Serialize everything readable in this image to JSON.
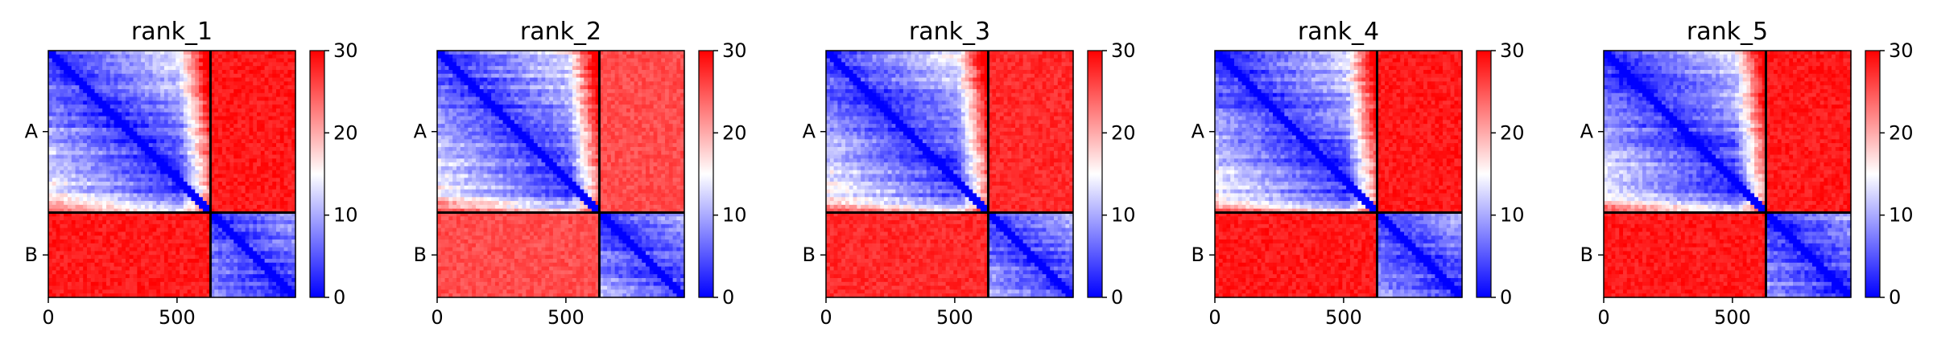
{
  "chart_data": {
    "type": "heatmap",
    "colormap": "bwr",
    "color_range": [
      0,
      30
    ],
    "colorbar_ticks": [
      "0",
      "10",
      "20",
      "30"
    ],
    "x_ticks": [
      {
        "value": 0,
        "label": "0"
      },
      {
        "value": 500,
        "label": "500"
      }
    ],
    "x_range": [
      0,
      960
    ],
    "y_tick_labels": [
      "A",
      "B"
    ],
    "chain_boundary": 630,
    "panels": [
      {
        "title": "rank_1",
        "intra_chain_mean": 5,
        "inter_chain_mean": 30
      },
      {
        "title": "rank_2",
        "intra_chain_mean": 6,
        "inter_chain_mean": 27
      },
      {
        "title": "rank_3",
        "intra_chain_mean": 6,
        "inter_chain_mean": 29
      },
      {
        "title": "rank_4",
        "intra_chain_mean": 5,
        "inter_chain_mean": 30
      },
      {
        "title": "rank_5",
        "intra_chain_mean": 5,
        "inter_chain_mean": 30
      }
    ]
  }
}
